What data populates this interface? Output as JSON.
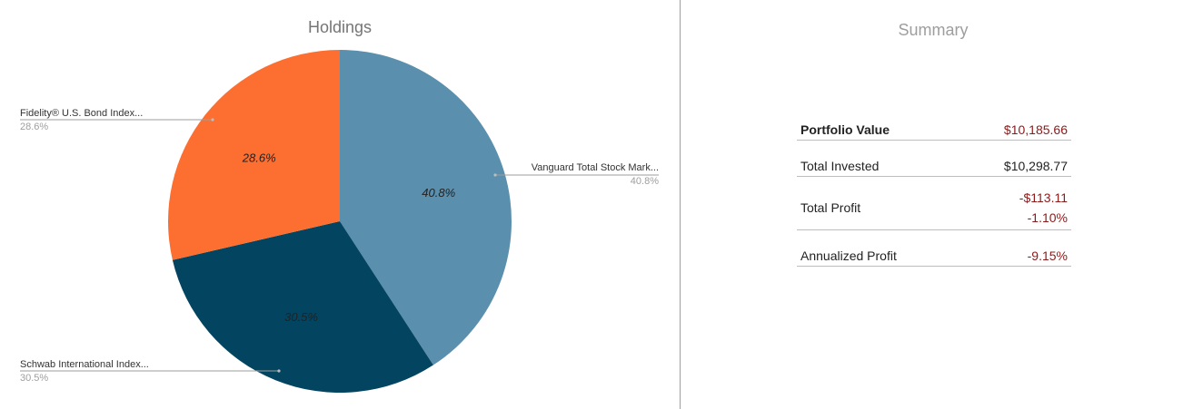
{
  "holdings": {
    "title": "Holdings"
  },
  "summary": {
    "title": "Summary",
    "rows": [
      {
        "label": "Portfolio Value",
        "values": [
          "$10,185.66"
        ],
        "bold": true,
        "color": "#8b1a1a"
      },
      {
        "label": "Total Invested",
        "values": [
          "$10,298.77"
        ],
        "bold": false,
        "color": "#222222"
      },
      {
        "label": "Total Profit",
        "values": [
          "-$113.11",
          "-1.10%"
        ],
        "bold": false,
        "color": "#8b1a1a"
      },
      {
        "label": "Annualized Profit",
        "values": [
          "-9.15%"
        ],
        "bold": false,
        "color": "#8b1a1a"
      }
    ]
  },
  "chart_data": {
    "type": "pie",
    "title": "Holdings",
    "slices": [
      {
        "name": "Vanguard Total Stock Mark...",
        "value": 40.8,
        "label": "40.8%",
        "color": "#5a8fad"
      },
      {
        "name": "Schwab International Index...",
        "value": 30.5,
        "label": "30.5%",
        "color": "#034460"
      },
      {
        "name": "Fidelity® U.S. Bond Index...",
        "value": 28.6,
        "label": "28.6%",
        "color": "#fd6f30"
      }
    ],
    "start_angle": "12 o'clock",
    "direction": "clockwise",
    "legend": "leader-line labels"
  }
}
